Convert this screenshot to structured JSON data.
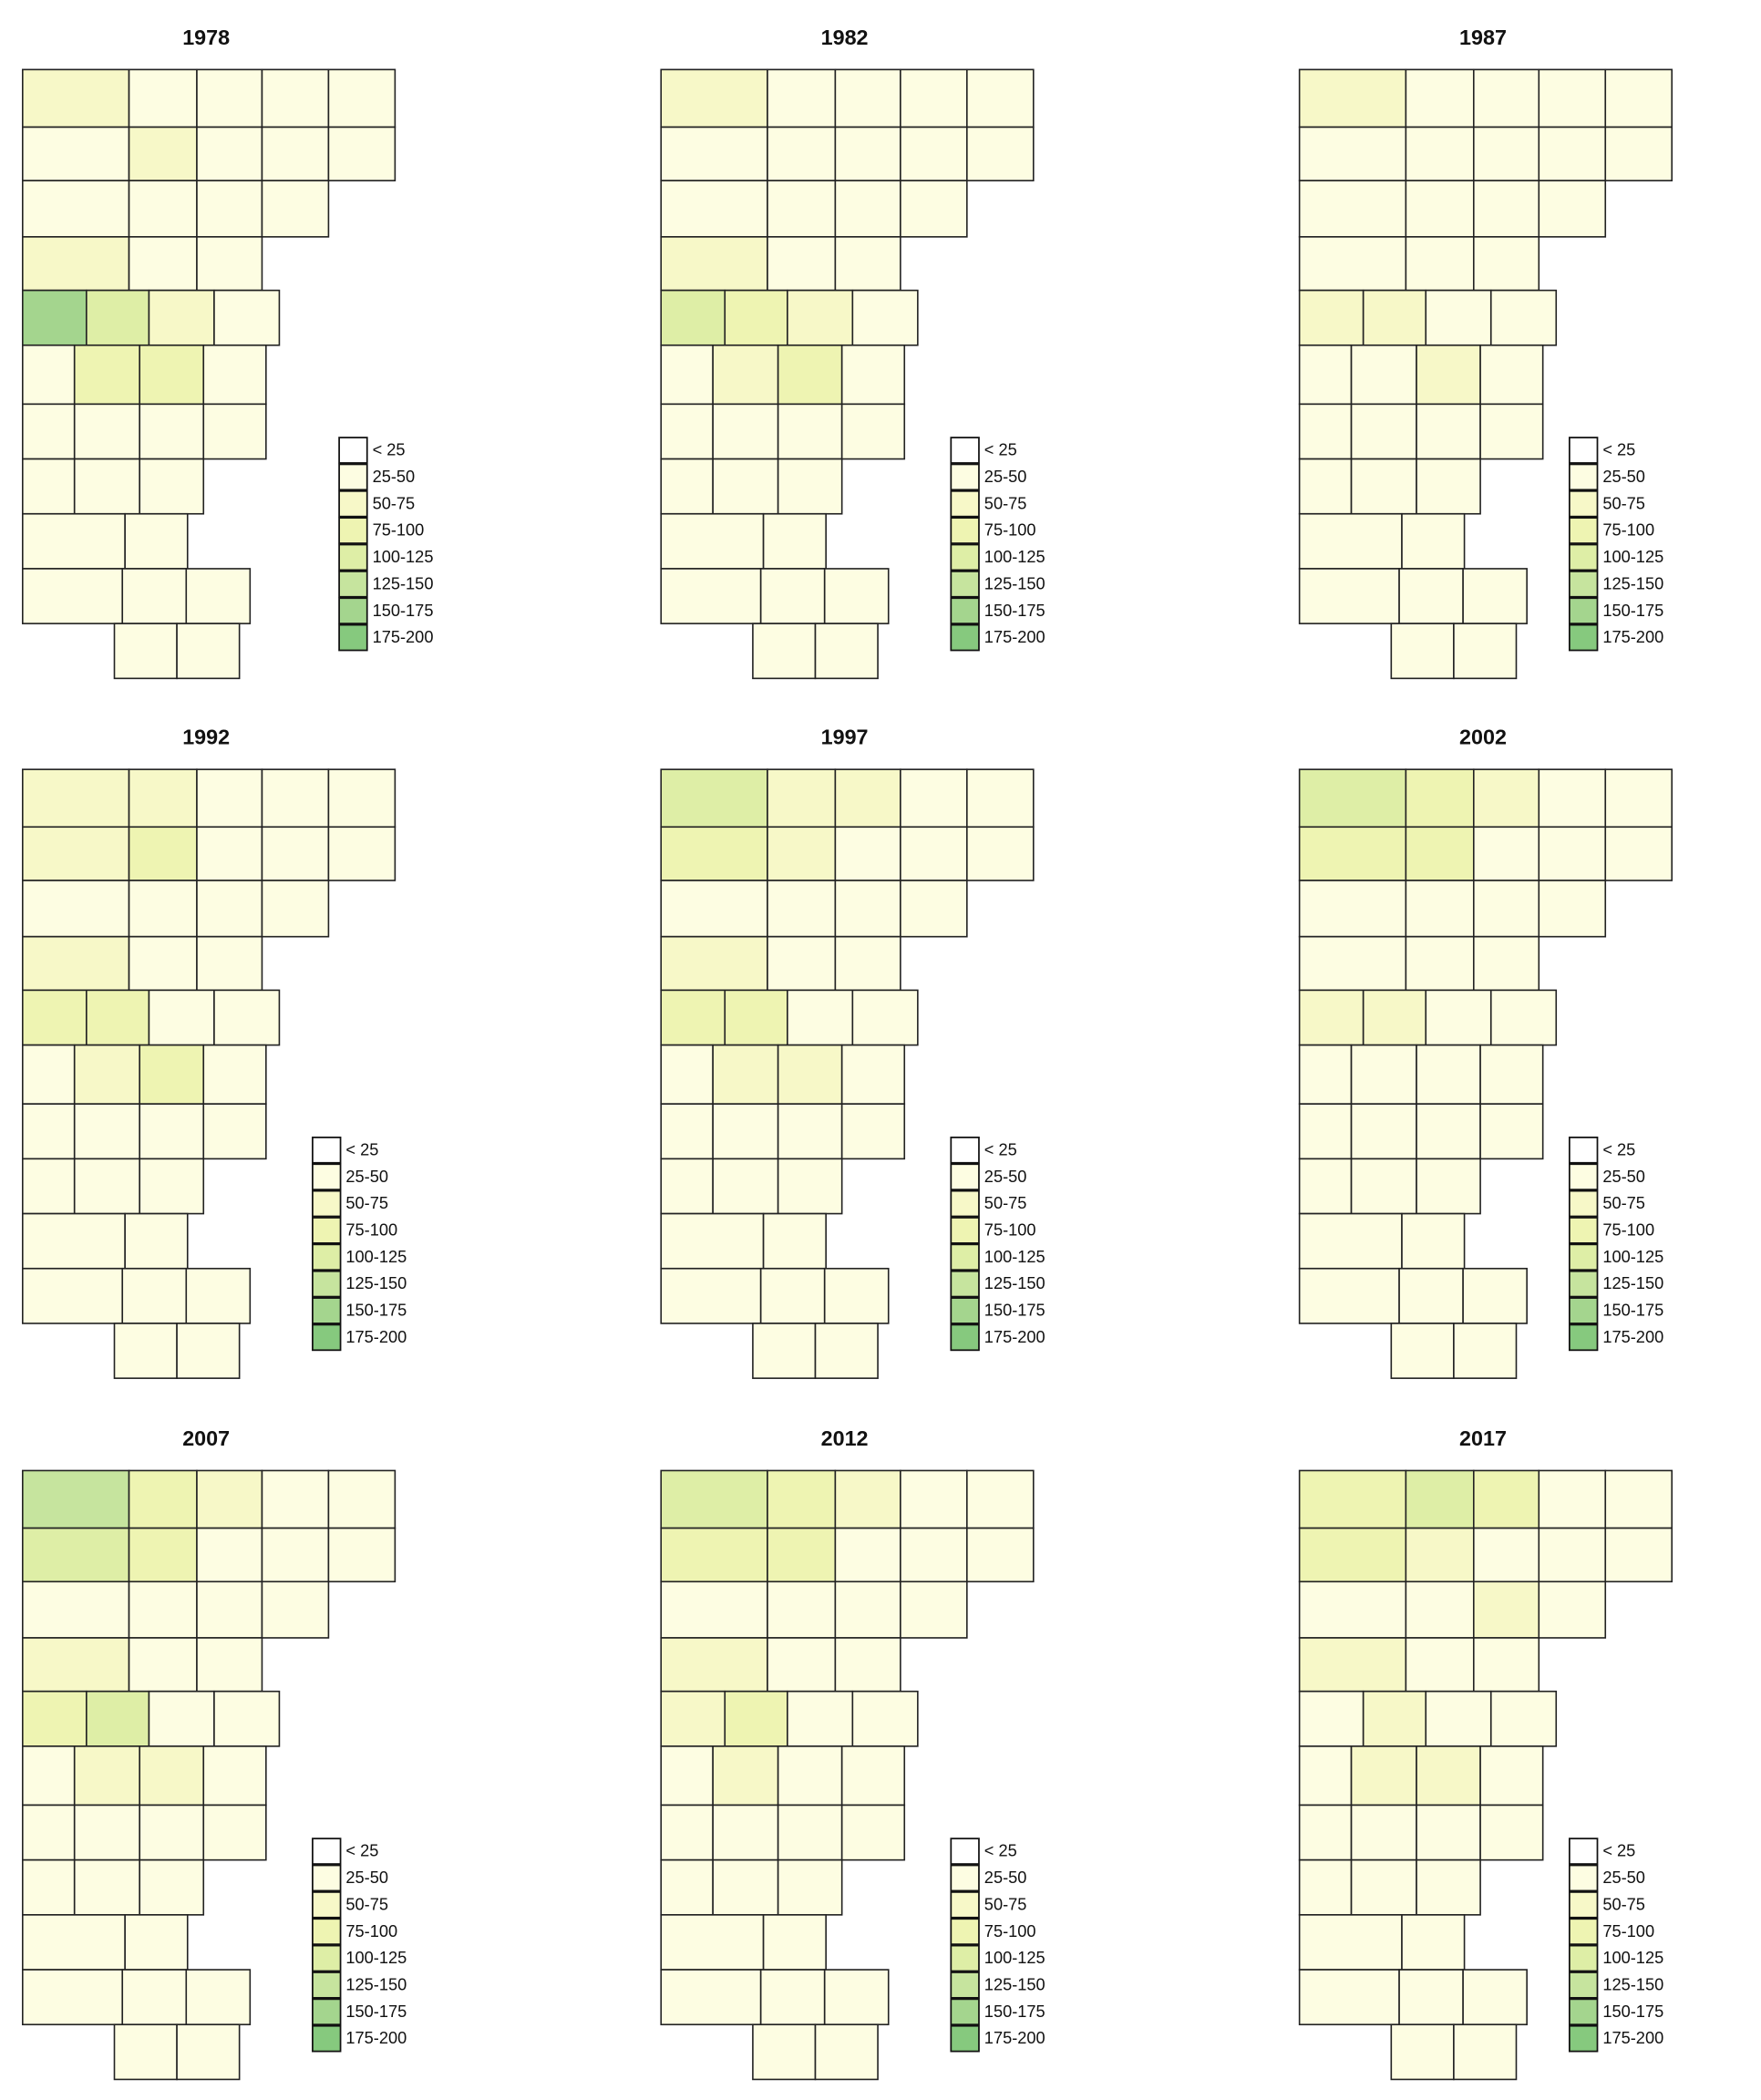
{
  "legend": {
    "labels": [
      "< 25",
      "25-50",
      "50-75",
      "75-100",
      "100-125",
      "125-150",
      "150-175",
      "175-200"
    ],
    "colors": [
      "#ffffff",
      "#fdfde2",
      "#f7f8c8",
      "#eef4b2",
      "#deeea6",
      "#c6e49e",
      "#a4d58e",
      "#86c97e"
    ]
  },
  "panels": [
    {
      "title": "1978",
      "rows": [
        [
          "50-75",
          "25-50",
          "25-50",
          "25-50",
          "25-50"
        ],
        [
          "25-50",
          "50-75",
          "25-50",
          "25-50",
          "25-50"
        ],
        [
          "25-50",
          "25-50",
          "25-50",
          "25-50"
        ],
        [
          "50-75",
          "25-50",
          "25-50"
        ],
        [
          "150-175",
          "100-125",
          "50-75",
          "25-50"
        ],
        [
          "25-50",
          "75-100",
          "75-100",
          "25-50"
        ],
        [
          "25-50",
          "25-50",
          "25-50",
          "25-50"
        ],
        [
          "25-50",
          "25-50",
          "25-50"
        ],
        [
          "25-50",
          "25-50"
        ],
        [
          "25-50",
          "25-50",
          "25-50"
        ],
        [
          "25-50",
          "25-50"
        ]
      ]
    },
    {
      "title": "1982",
      "rows": [
        [
          "50-75",
          "25-50",
          "25-50",
          "25-50",
          "25-50"
        ],
        [
          "25-50",
          "25-50",
          "25-50",
          "25-50",
          "25-50"
        ],
        [
          "25-50",
          "25-50",
          "25-50",
          "25-50"
        ],
        [
          "50-75",
          "25-50",
          "25-50"
        ],
        [
          "100-125",
          "75-100",
          "50-75",
          "25-50"
        ],
        [
          "25-50",
          "50-75",
          "75-100",
          "25-50"
        ],
        [
          "25-50",
          "25-50",
          "25-50",
          "25-50"
        ],
        [
          "25-50",
          "25-50",
          "25-50"
        ],
        [
          "25-50",
          "25-50"
        ],
        [
          "25-50",
          "25-50",
          "25-50"
        ],
        [
          "25-50",
          "25-50"
        ]
      ]
    },
    {
      "title": "1987",
      "rows": [
        [
          "50-75",
          "25-50",
          "25-50",
          "25-50",
          "25-50"
        ],
        [
          "25-50",
          "25-50",
          "25-50",
          "25-50",
          "25-50"
        ],
        [
          "25-50",
          "25-50",
          "25-50",
          "25-50"
        ],
        [
          "25-50",
          "25-50",
          "25-50"
        ],
        [
          "50-75",
          "50-75",
          "25-50",
          "25-50"
        ],
        [
          "25-50",
          "25-50",
          "50-75",
          "25-50"
        ],
        [
          "25-50",
          "25-50",
          "25-50",
          "25-50"
        ],
        [
          "25-50",
          "25-50",
          "25-50"
        ],
        [
          "25-50",
          "25-50"
        ],
        [
          "25-50",
          "25-50",
          "25-50"
        ],
        [
          "25-50",
          "25-50"
        ]
      ]
    },
    {
      "title": "1992",
      "rows": [
        [
          "50-75",
          "50-75",
          "25-50",
          "25-50",
          "25-50"
        ],
        [
          "50-75",
          "75-100",
          "25-50",
          "25-50",
          "25-50"
        ],
        [
          "25-50",
          "25-50",
          "25-50",
          "25-50"
        ],
        [
          "50-75",
          "25-50",
          "25-50"
        ],
        [
          "75-100",
          "75-100",
          "25-50",
          "25-50"
        ],
        [
          "25-50",
          "50-75",
          "75-100",
          "25-50"
        ],
        [
          "25-50",
          "25-50",
          "25-50",
          "25-50"
        ],
        [
          "25-50",
          "25-50",
          "25-50"
        ],
        [
          "25-50",
          "25-50"
        ],
        [
          "25-50",
          "25-50",
          "25-50"
        ],
        [
          "25-50",
          "25-50"
        ]
      ]
    },
    {
      "title": "1997",
      "rows": [
        [
          "100-125",
          "50-75",
          "50-75",
          "25-50",
          "25-50"
        ],
        [
          "75-100",
          "50-75",
          "25-50",
          "25-50",
          "25-50"
        ],
        [
          "25-50",
          "25-50",
          "25-50",
          "25-50"
        ],
        [
          "50-75",
          "25-50",
          "25-50"
        ],
        [
          "75-100",
          "75-100",
          "25-50",
          "25-50"
        ],
        [
          "25-50",
          "50-75",
          "50-75",
          "25-50"
        ],
        [
          "25-50",
          "25-50",
          "25-50",
          "25-50"
        ],
        [
          "25-50",
          "25-50",
          "25-50"
        ],
        [
          "25-50",
          "25-50"
        ],
        [
          "25-50",
          "25-50",
          "25-50"
        ],
        [
          "25-50",
          "25-50"
        ]
      ]
    },
    {
      "title": "2002",
      "rows": [
        [
          "100-125",
          "75-100",
          "50-75",
          "25-50",
          "25-50"
        ],
        [
          "75-100",
          "75-100",
          "25-50",
          "25-50",
          "25-50"
        ],
        [
          "25-50",
          "25-50",
          "25-50",
          "25-50"
        ],
        [
          "25-50",
          "25-50",
          "25-50"
        ],
        [
          "50-75",
          "50-75",
          "25-50",
          "25-50"
        ],
        [
          "25-50",
          "25-50",
          "25-50",
          "25-50"
        ],
        [
          "25-50",
          "25-50",
          "25-50",
          "25-50"
        ],
        [
          "25-50",
          "25-50",
          "25-50"
        ],
        [
          "25-50",
          "25-50"
        ],
        [
          "25-50",
          "25-50",
          "25-50"
        ],
        [
          "25-50",
          "25-50"
        ]
      ]
    },
    {
      "title": "2007",
      "rows": [
        [
          "125-150",
          "75-100",
          "50-75",
          "25-50",
          "25-50"
        ],
        [
          "100-125",
          "75-100",
          "25-50",
          "25-50",
          "25-50"
        ],
        [
          "25-50",
          "25-50",
          "25-50",
          "25-50"
        ],
        [
          "50-75",
          "25-50",
          "25-50"
        ],
        [
          "75-100",
          "100-125",
          "25-50",
          "25-50"
        ],
        [
          "25-50",
          "50-75",
          "50-75",
          "25-50"
        ],
        [
          "25-50",
          "25-50",
          "25-50",
          "25-50"
        ],
        [
          "25-50",
          "25-50",
          "25-50"
        ],
        [
          "25-50",
          "25-50"
        ],
        [
          "25-50",
          "25-50",
          "25-50"
        ],
        [
          "25-50",
          "25-50"
        ]
      ]
    },
    {
      "title": "2012",
      "rows": [
        [
          "100-125",
          "75-100",
          "50-75",
          "25-50",
          "25-50"
        ],
        [
          "75-100",
          "75-100",
          "25-50",
          "25-50",
          "25-50"
        ],
        [
          "25-50",
          "25-50",
          "25-50",
          "25-50"
        ],
        [
          "50-75",
          "25-50",
          "25-50"
        ],
        [
          "50-75",
          "75-100",
          "25-50",
          "25-50"
        ],
        [
          "25-50",
          "50-75",
          "25-50",
          "25-50"
        ],
        [
          "25-50",
          "25-50",
          "25-50",
          "25-50"
        ],
        [
          "25-50",
          "25-50",
          "25-50"
        ],
        [
          "25-50",
          "25-50"
        ],
        [
          "25-50",
          "25-50",
          "25-50"
        ],
        [
          "25-50",
          "25-50"
        ]
      ]
    },
    {
      "title": "2017",
      "rows": [
        [
          "75-100",
          "100-125",
          "75-100",
          "25-50",
          "25-50"
        ],
        [
          "75-100",
          "50-75",
          "25-50",
          "25-50",
          "25-50"
        ],
        [
          "25-50",
          "25-50",
          "50-75",
          "25-50"
        ],
        [
          "50-75",
          "25-50",
          "25-50"
        ],
        [
          "25-50",
          "50-75",
          "25-50",
          "25-50"
        ],
        [
          "25-50",
          "50-75",
          "50-75",
          "25-50"
        ],
        [
          "25-50",
          "25-50",
          "25-50",
          "25-50"
        ],
        [
          "25-50",
          "25-50",
          "25-50"
        ],
        [
          "25-50",
          "25-50"
        ],
        [
          "25-50",
          "25-50",
          "25-50"
        ],
        [
          "25-50",
          "25-50"
        ]
      ]
    }
  ]
}
